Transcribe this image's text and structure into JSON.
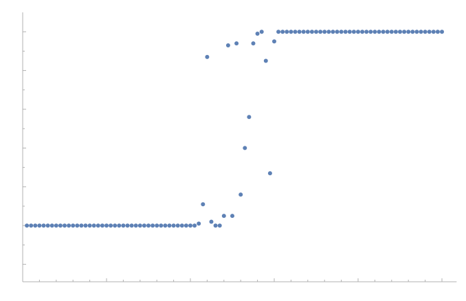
{
  "chart_data": {
    "type": "scatter",
    "x": [
      1,
      2,
      3,
      4,
      5,
      6,
      7,
      8,
      9,
      10,
      11,
      12,
      13,
      14,
      15,
      16,
      17,
      18,
      19,
      20,
      21,
      22,
      23,
      24,
      25,
      26,
      27,
      28,
      29,
      30,
      31,
      32,
      33,
      34,
      35,
      36,
      37,
      38,
      39,
      40,
      41,
      42,
      43,
      44,
      45,
      46,
      47,
      48,
      49,
      50,
      51,
      52,
      53,
      54,
      55,
      56,
      57,
      58,
      59,
      60,
      61,
      62,
      63,
      64,
      65,
      66,
      67,
      68,
      69,
      70,
      71,
      72,
      73,
      74,
      75,
      76,
      77,
      78,
      79,
      80,
      81,
      82,
      83,
      84,
      85,
      86,
      87,
      88,
      89,
      90,
      91,
      92,
      93,
      94,
      95,
      96,
      97,
      98,
      99,
      100
    ],
    "values": [
      0,
      0,
      0,
      0,
      0,
      0,
      0,
      0,
      0,
      0,
      0,
      0,
      0,
      0,
      0,
      0,
      0,
      0,
      0,
      0,
      0,
      0,
      0,
      0,
      0,
      0,
      0,
      0,
      0,
      0,
      0,
      0,
      0,
      0,
      0,
      0,
      0,
      0,
      0,
      0,
      0,
      0.01,
      0.11,
      0.87,
      0.02,
      0,
      0,
      0.05,
      0.93,
      0.05,
      0.94,
      0.16,
      0.4,
      0.56,
      0.94,
      0.99,
      1,
      0.85,
      0.27,
      0.95,
      1,
      1,
      1,
      1,
      1,
      1,
      1,
      1,
      1,
      1,
      1,
      1,
      1,
      1,
      1,
      1,
      1,
      1,
      1,
      1,
      1,
      1,
      1,
      1,
      1,
      1,
      1,
      1,
      1,
      1,
      1,
      1,
      1,
      1,
      1,
      1,
      1,
      1,
      1,
      1
    ],
    "color": "#5e81b5",
    "xlim": [
      0,
      103.5
    ],
    "ylim": [
      -0.29,
      1.1
    ],
    "xticks": [
      0,
      4,
      8,
      12,
      16,
      20,
      24,
      28,
      32,
      36,
      40,
      44,
      48,
      52,
      56,
      60,
      64,
      68,
      72,
      76,
      80,
      84,
      88,
      92,
      96,
      100
    ],
    "yticks": [
      -0.2,
      -0.1,
      0,
      0.1,
      0.2,
      0.3,
      0.4,
      0.5,
      0.6,
      0.7,
      0.8,
      0.9,
      1
    ]
  }
}
